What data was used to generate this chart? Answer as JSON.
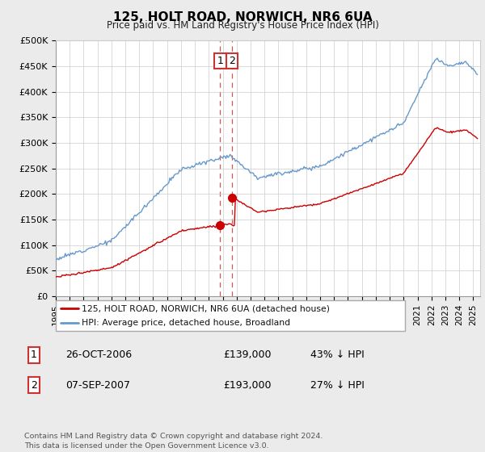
{
  "title": "125, HOLT ROAD, NORWICH, NR6 6UA",
  "subtitle": "Price paid vs. HM Land Registry's House Price Index (HPI)",
  "ylabel_ticks": [
    "£0",
    "£50K",
    "£100K",
    "£150K",
    "£200K",
    "£250K",
    "£300K",
    "£350K",
    "£400K",
    "£450K",
    "£500K"
  ],
  "ytick_values": [
    0,
    50000,
    100000,
    150000,
    200000,
    250000,
    300000,
    350000,
    400000,
    450000,
    500000
  ],
  "ylim": [
    0,
    500000
  ],
  "xlim_start": 1995.0,
  "xlim_end": 2025.5,
  "transaction1": {
    "date_num": 2006.82,
    "price": 139000,
    "label": "1"
  },
  "transaction2": {
    "date_num": 2007.68,
    "price": 193000,
    "label": "2"
  },
  "legend_line1": "125, HOLT ROAD, NORWICH, NR6 6UA (detached house)",
  "legend_line2": "HPI: Average price, detached house, Broadland",
  "table_row1": [
    "1",
    "26-OCT-2006",
    "£139,000",
    "43% ↓ HPI"
  ],
  "table_row2": [
    "2",
    "07-SEP-2007",
    "£193,000",
    "27% ↓ HPI"
  ],
  "footer": "Contains HM Land Registry data © Crown copyright and database right 2024.\nThis data is licensed under the Open Government Licence v3.0.",
  "line_color_red": "#cc0000",
  "line_color_blue": "#6699cc",
  "vline_color": "#cc4444",
  "background_color": "#ebebeb",
  "plot_bg_color": "#ffffff"
}
